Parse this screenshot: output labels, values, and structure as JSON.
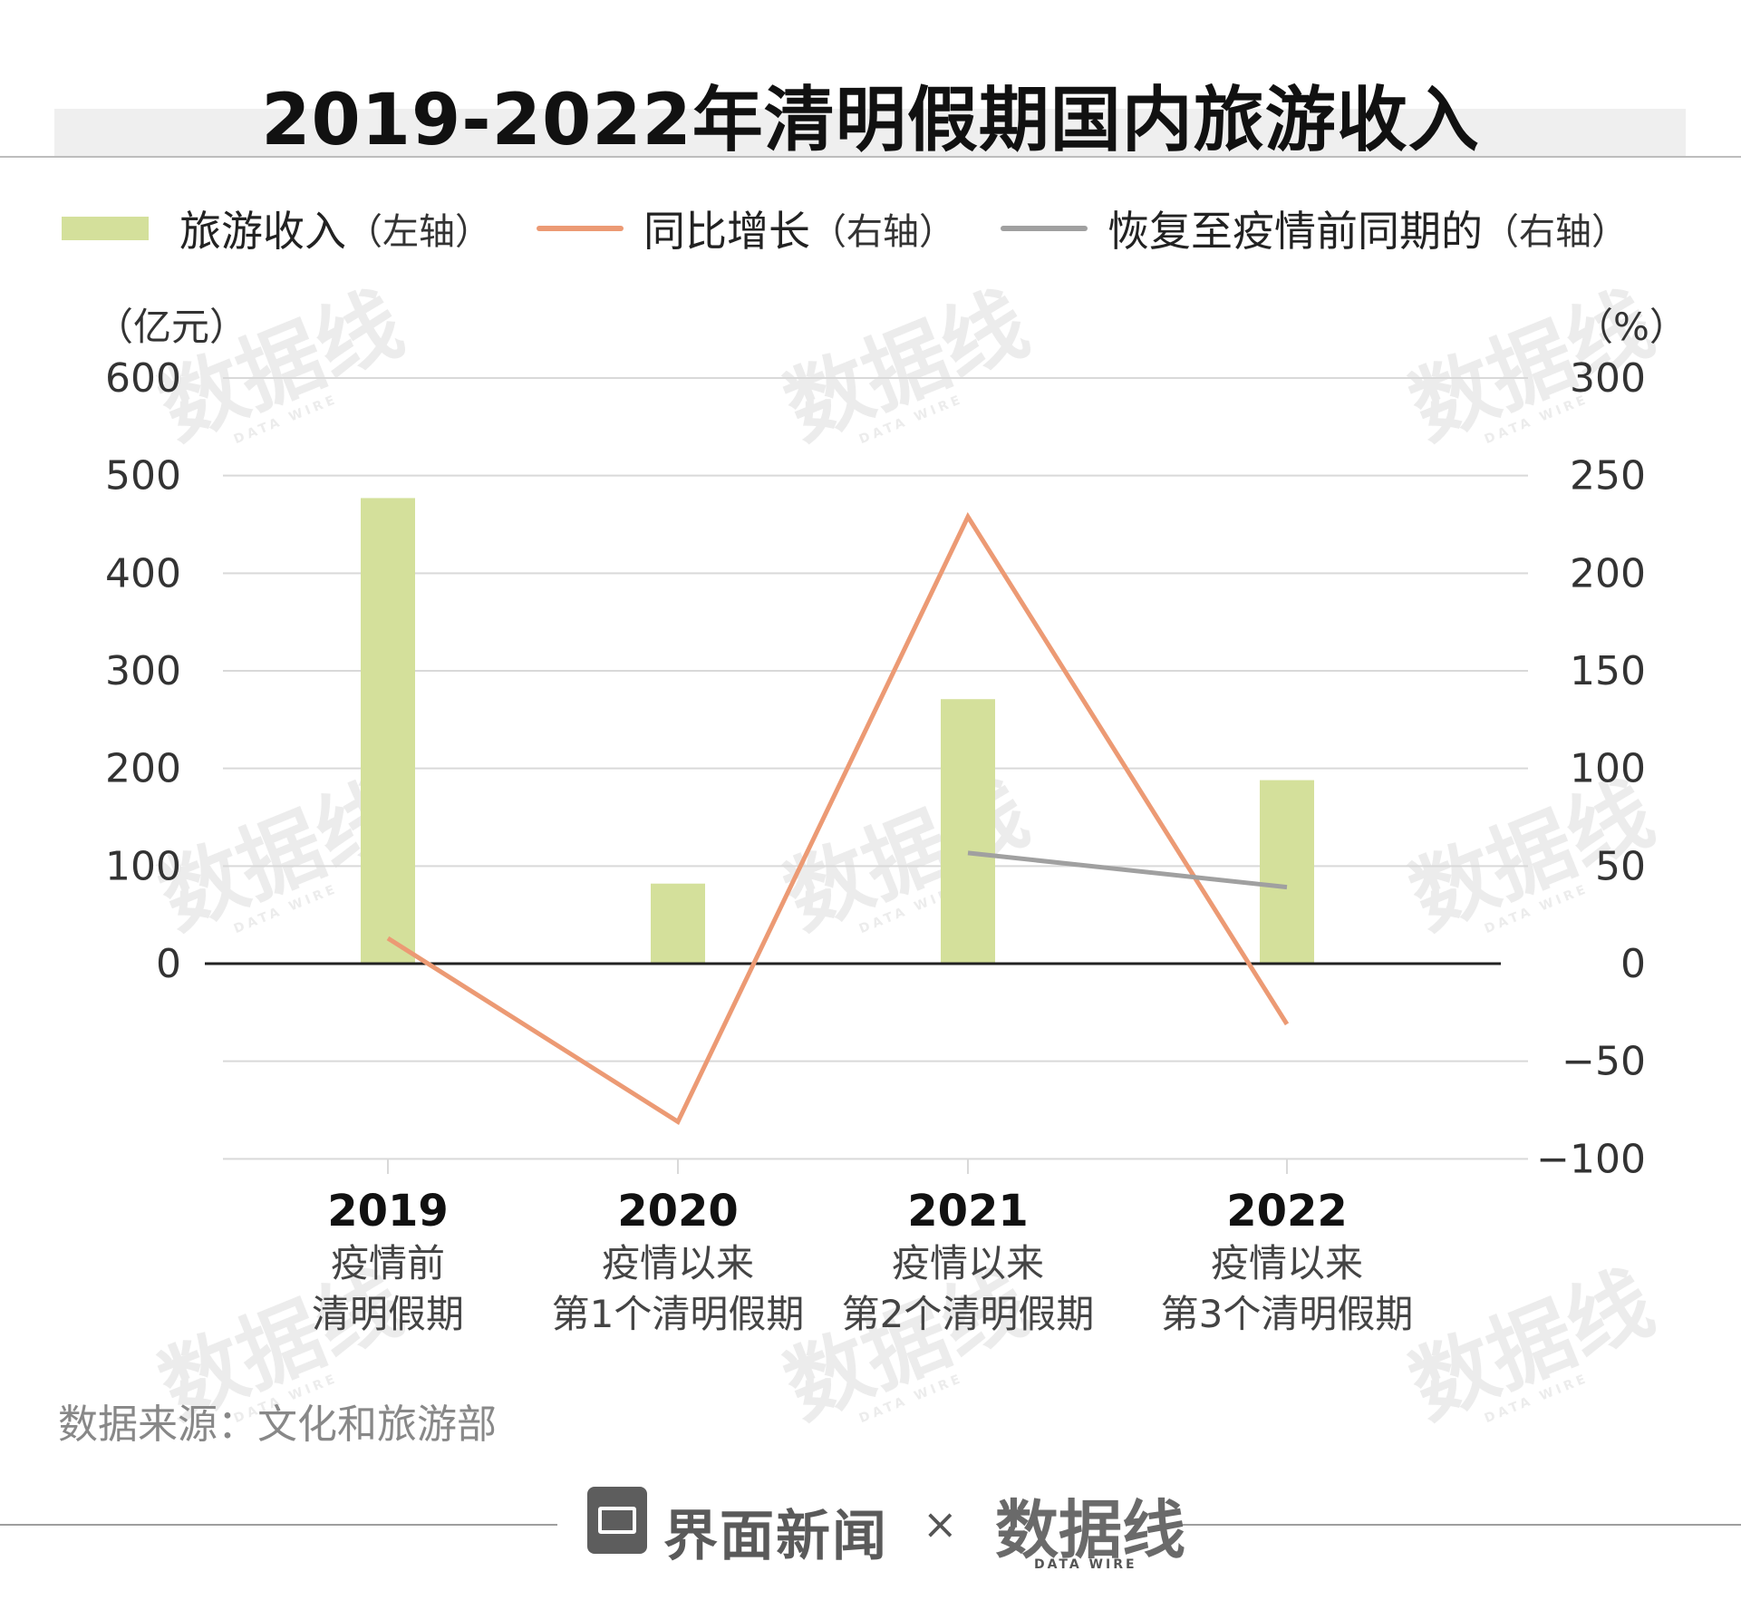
{
  "title": "2019-2022年清明假期国内旅游收入",
  "legend": {
    "revenue": "旅游收入",
    "revenue_axis": "（左轴）",
    "yoy": "同比增长",
    "yoy_axis": "（右轴）",
    "recovery": "恢复至疫情前同期的",
    "recovery_axis": "（右轴）"
  },
  "source": "数据来源：文化和旅游部",
  "footer": {
    "brand": "界面新闻",
    "separator": "×",
    "partner": "数据线",
    "partner_sub": "DATA WIRE"
  },
  "watermark": {
    "mark": "数据线",
    "sub": "DATA WIRE"
  },
  "colors": {
    "bar": "#d4e09b",
    "yoy": "#ec9a74",
    "recovery": "#a0a0a0",
    "grid": "#d9d9d9",
    "zero": "#222222"
  },
  "chart_data": {
    "type": "bar",
    "categories": [
      "2019",
      "2020",
      "2021",
      "2022"
    ],
    "category_lines": [
      [
        "疫情前",
        "清明假期"
      ],
      [
        "疫情以来",
        "第1个清明假期"
      ],
      [
        "疫情以来",
        "第2个清明假期"
      ],
      [
        "疫情以来",
        "第3个清明假期"
      ]
    ],
    "series": [
      {
        "name": "旅游收入",
        "type": "bar",
        "axis": "left",
        "values": [
          477,
          82,
          271,
          188
        ]
      },
      {
        "name": "同比增长",
        "type": "line",
        "axis": "right",
        "values": [
          13,
          -81,
          228.9,
          -31
        ]
      },
      {
        "name": "恢复至疫情前同期的",
        "type": "line",
        "axis": "right",
        "values": [
          null,
          null,
          56.7,
          39.2
        ]
      }
    ],
    "left_axis": {
      "unit": "（亿元）",
      "ticks": [
        0,
        100,
        200,
        300,
        400,
        500,
        600
      ],
      "range": [
        -200,
        600
      ]
    },
    "right_axis": {
      "unit": "（%）",
      "ticks": [
        -100,
        -50,
        0,
        50,
        100,
        150,
        200,
        250,
        300
      ],
      "range": [
        -100,
        300
      ]
    },
    "grid": true,
    "legend_position": "top"
  }
}
